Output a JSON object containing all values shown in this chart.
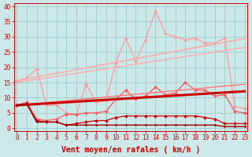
{
  "title": "",
  "xlabel": "Vent moyen/en rafales ( km/h )",
  "ylabel": "",
  "background_color": "#cce8e8",
  "grid_color": "#99cccc",
  "x_values": [
    0,
    1,
    2,
    3,
    4,
    5,
    6,
    7,
    8,
    9,
    10,
    11,
    12,
    13,
    14,
    15,
    16,
    17,
    18,
    19,
    20,
    21,
    22,
    23
  ],
  "ylim": [
    -1,
    41
  ],
  "xlim": [
    -0.3,
    23.3
  ],
  "yticks": [
    0,
    5,
    10,
    15,
    20,
    25,
    30,
    35,
    40
  ],
  "series": [
    {
      "name": "spiky_light_top",
      "color": "#ff9999",
      "lw": 0.9,
      "marker": "D",
      "markersize": 2.0,
      "linestyle": "-",
      "y": [
        15.5,
        16.5,
        19.5,
        7.5,
        7.5,
        5.0,
        4.5,
        14.5,
        8.5,
        9.0,
        21.5,
        29.5,
        22.0,
        29.0,
        38.5,
        31.0,
        30.0,
        29.0,
        29.5,
        28.0,
        28.0,
        29.5,
        7.0,
        6.5
      ]
    },
    {
      "name": "trend_light_upper",
      "color": "#ffaaaa",
      "lw": 1.2,
      "marker": "None",
      "markersize": 0,
      "linestyle": "-",
      "y": [
        15.5,
        16.2,
        16.8,
        17.4,
        18.0,
        18.6,
        19.2,
        19.8,
        20.4,
        21.0,
        21.6,
        22.2,
        22.8,
        23.4,
        24.0,
        24.6,
        25.2,
        25.8,
        26.4,
        27.0,
        27.6,
        28.2,
        28.8,
        29.4
      ]
    },
    {
      "name": "trend_light_lower",
      "color": "#ffaaaa",
      "lw": 1.0,
      "marker": "None",
      "markersize": 0,
      "linestyle": "-",
      "y": [
        15.0,
        15.5,
        16.0,
        16.5,
        17.0,
        17.5,
        18.0,
        18.5,
        19.0,
        19.5,
        20.0,
        20.5,
        21.0,
        21.5,
        22.0,
        22.5,
        23.0,
        23.5,
        24.0,
        24.5,
        25.0,
        25.5,
        26.0,
        26.5
      ]
    },
    {
      "name": "spiky_medium",
      "color": "#ff5555",
      "lw": 0.9,
      "marker": "D",
      "markersize": 2.0,
      "linestyle": "-",
      "y": [
        7.5,
        8.5,
        3.0,
        2.5,
        3.0,
        4.5,
        4.5,
        5.0,
        5.0,
        5.5,
        9.5,
        12.5,
        9.5,
        10.5,
        13.5,
        11.0,
        11.5,
        15.0,
        12.5,
        12.5,
        10.5,
        11.0,
        5.5,
        5.0
      ]
    },
    {
      "name": "trend_medium",
      "color": "#ff7777",
      "lw": 1.0,
      "marker": "None",
      "markersize": 0,
      "linestyle": "-",
      "y": [
        7.5,
        7.8,
        8.1,
        8.4,
        8.7,
        9.0,
        9.3,
        9.6,
        9.9,
        10.2,
        10.5,
        10.8,
        11.1,
        11.4,
        11.7,
        12.0,
        12.3,
        12.6,
        12.9,
        13.2,
        13.5,
        13.8,
        14.1,
        14.4
      ]
    },
    {
      "name": "thick_dark_trend",
      "color": "#cc0000",
      "lw": 2.2,
      "marker": "None",
      "markersize": 0,
      "linestyle": "-",
      "y": [
        7.5,
        7.7,
        7.9,
        8.1,
        8.3,
        8.5,
        8.7,
        8.9,
        9.1,
        9.3,
        9.5,
        9.7,
        9.9,
        10.1,
        10.3,
        10.5,
        10.7,
        10.9,
        11.1,
        11.3,
        11.5,
        11.7,
        11.9,
        12.1
      ]
    },
    {
      "name": "spiky_dark",
      "color": "#cc0000",
      "lw": 0.9,
      "marker": "D",
      "markersize": 2.0,
      "linestyle": "-",
      "y": [
        7.5,
        8.0,
        2.5,
        2.0,
        2.0,
        1.0,
        1.5,
        2.0,
        2.5,
        2.5,
        3.5,
        4.0,
        4.0,
        4.0,
        4.0,
        4.0,
        4.0,
        4.0,
        4.0,
        3.5,
        3.0,
        1.5,
        1.5,
        1.5
      ]
    },
    {
      "name": "flat_darkest",
      "color": "#990000",
      "lw": 1.0,
      "marker": "D",
      "markersize": 1.5,
      "linestyle": "-",
      "y": [
        7.5,
        8.0,
        2.0,
        2.0,
        2.0,
        1.0,
        1.0,
        1.0,
        1.0,
        1.0,
        1.0,
        1.0,
        1.0,
        1.0,
        1.0,
        1.0,
        1.0,
        1.0,
        1.0,
        1.0,
        1.0,
        0.5,
        0.5,
        0.5
      ]
    }
  ],
  "tick_fontsize": 5.5,
  "label_fontsize": 7.0
}
